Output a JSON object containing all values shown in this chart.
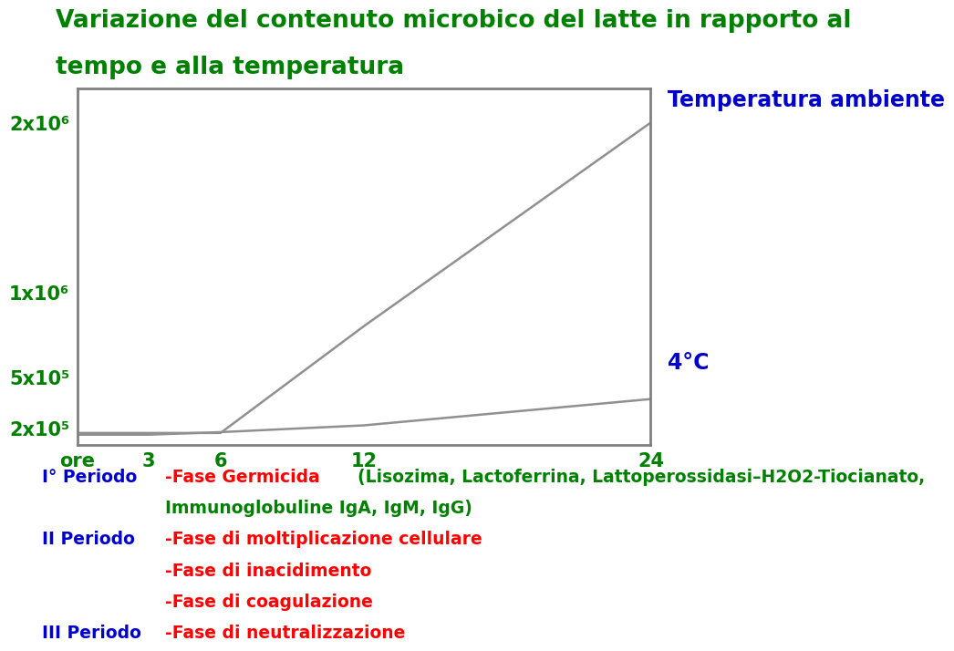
{
  "title_line1": "Variazione del contenuto microbico del latte in rapporto al",
  "title_line2": "tempo e alla temperatura",
  "title_color": "#008000",
  "title_fontsize": 19,
  "ambient_line_x": [
    0,
    3,
    6,
    12,
    24
  ],
  "ambient_line_y": [
    170000,
    170000,
    170000,
    800000,
    2000000
  ],
  "cold_line_x": [
    0,
    3,
    6,
    12,
    24
  ],
  "cold_line_y": [
    160000,
    160000,
    175000,
    215000,
    370000
  ],
  "line_color": "#909090",
  "line_width": 1.8,
  "x_ticks": [
    0,
    3,
    6,
    12,
    24
  ],
  "x_tick_labels": [
    "ore",
    "3",
    "6",
    "12",
    "24"
  ],
  "x_tick_color": "#008000",
  "x_tick_fontsize": 15,
  "y_ticks": [
    200000,
    500000,
    1000000,
    2000000
  ],
  "y_tick_labels": [
    "2x10⁵",
    "5x10⁵",
    "1x10⁶",
    "2x10⁶"
  ],
  "y_tick_color": "#008000",
  "y_tick_fontsize": 15,
  "label_ambient_text": "Temperatura ambiente",
  "label_ambient_color": "#0000CC",
  "label_ambient_fontsize": 17,
  "label_4c_text": "4°C",
  "label_4c_color": "#0000CC",
  "label_4c_fontsize": 17,
  "ylim_min": 100000,
  "ylim_max": 2200000,
  "xlim_min": 0,
  "xlim_max": 24,
  "background_color": "#ffffff",
  "legend_fontsize": 13.5
}
